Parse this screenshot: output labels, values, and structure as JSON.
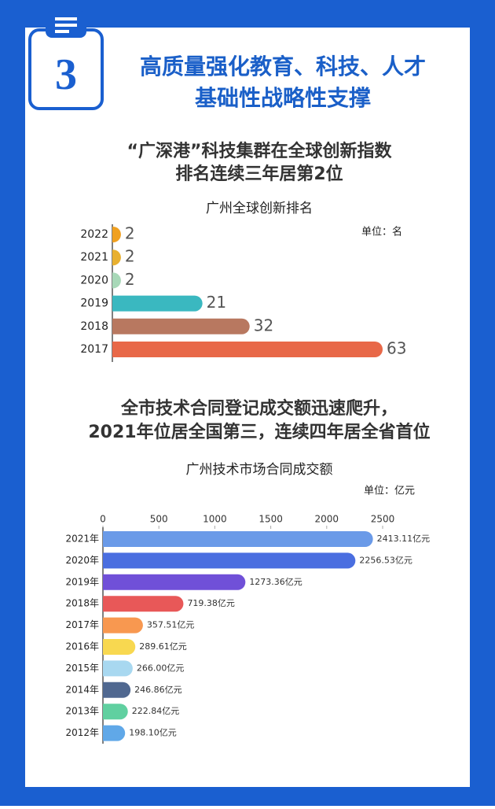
{
  "header": {
    "number": 3,
    "title": [
      "高质量强化教育、科技、人才",
      "基础性战略性支撑"
    ]
  },
  "chart_data": [
    {
      "type": "hbar",
      "heading": [
        "“广深港”科技集群在全球创新指数",
        "排名连续三年居第2位"
      ],
      "title": "广州全球创新排名",
      "unit": "单位：名",
      "categories": [
        "2022",
        "2021",
        "2020",
        "2019",
        "2018",
        "2017"
      ],
      "values": [
        2,
        2,
        2,
        21,
        32,
        63
      ],
      "colors": [
        "#f0a020",
        "#e8b030",
        "#a8d8b8",
        "#3ab8c0",
        "#b87860",
        "#e86848"
      ]
    },
    {
      "type": "hbar",
      "heading": [
        "全市技术合同登记成交额迅速爬升，",
        "2021年位居全国第三，连续四年居全省首位"
      ],
      "title": "广州技术市场合同成交额",
      "unit": "单位：亿元",
      "categories": [
        "2021年",
        "2020年",
        "2019年",
        "2018年",
        "2017年",
        "2016年",
        "2015年",
        "2014年",
        "2013年",
        "2012年"
      ],
      "values": [
        2413.11,
        2256.53,
        1273.36,
        719.38,
        357.51,
        289.61,
        266.0,
        246.86,
        222.84,
        198.1
      ],
      "value_labels": [
        "2413.11亿元",
        "2256.53亿元",
        "1273.36亿元",
        "719.38亿元",
        "357.51亿元",
        "289.61亿元",
        "266.00亿元",
        "246.86亿元",
        "222.84亿元",
        "198.10亿元"
      ],
      "colors": [
        "#6a9ae8",
        "#4a6ee0",
        "#7050d8",
        "#e85858",
        "#f89850",
        "#f8d850",
        "#a8d8f0",
        "#506890",
        "#60d0a0",
        "#60a8e8"
      ],
      "xlim": [
        0,
        2500
      ],
      "xticks": [
        0,
        500,
        1000,
        1500,
        2000,
        2500
      ]
    }
  ]
}
